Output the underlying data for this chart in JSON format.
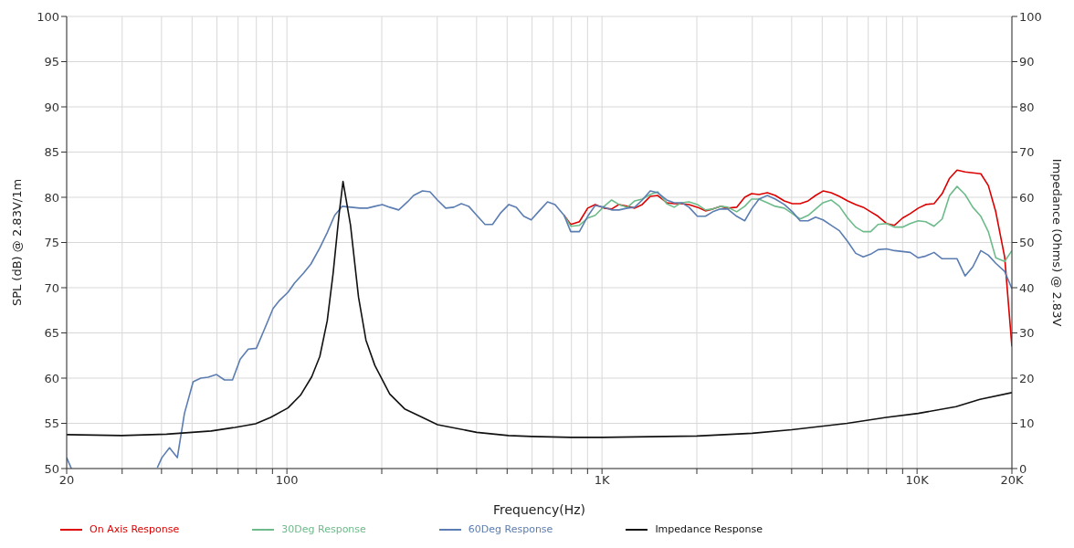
{
  "chart_data": {
    "type": "line",
    "xlabel": "Frequency(Hz)",
    "ylabel": "SPL (dB) @ 2.83V/1m",
    "y2label": "Impedance (Ohms) @ 2.83V",
    "log": "x",
    "grid": true,
    "legend": "bottom",
    "marker": "none",
    "line_style": "solid",
    "xlim": [
      20,
      20000
    ],
    "xticks": [
      20,
      {
        "value": 30,
        "label": null
      },
      {
        "value": 40,
        "label": null
      },
      {
        "value": 50,
        "label": null
      },
      {
        "value": 60,
        "label": null
      },
      {
        "value": 70,
        "label": null
      },
      {
        "value": 80,
        "label": null
      },
      {
        "value": 90,
        "label": null
      },
      100,
      {
        "value": 200,
        "label": null
      },
      {
        "value": 300,
        "label": null
      },
      {
        "value": 400,
        "label": null
      },
      {
        "value": 500,
        "label": null
      },
      {
        "value": 600,
        "label": null
      },
      {
        "value": 700,
        "label": null
      },
      {
        "value": 800,
        "label": null
      },
      {
        "value": 900,
        "label": null
      },
      {
        "value": 1000,
        "label": "1K"
      },
      {
        "value": 2000,
        "label": null
      },
      {
        "value": 3000,
        "label": null
      },
      {
        "value": 4000,
        "label": null
      },
      {
        "value": 5000,
        "label": null
      },
      {
        "value": 6000,
        "label": null
      },
      {
        "value": 7000,
        "label": null
      },
      {
        "value": 8000,
        "label": null
      },
      {
        "value": 9000,
        "label": null
      },
      {
        "value": 10000,
        "label": "10K"
      },
      {
        "value": 20000,
        "label": "20K"
      }
    ],
    "ylim": [
      50,
      100
    ],
    "yticks": [
      50,
      55,
      60,
      65,
      70,
      75,
      80,
      85,
      90,
      95,
      100
    ],
    "y2lim": [
      0,
      100
    ],
    "y2ticks": [
      0,
      10,
      20,
      30,
      40,
      50,
      60,
      70,
      80,
      90,
      100
    ],
    "series": [
      {
        "name": "On Axis Response",
        "color": "#dd0000",
        "x": [
          758,
          796,
          848,
          901,
          952,
          1016,
          1073,
          1132,
          1204,
          1271,
          1342,
          1423,
          1503,
          1605,
          1694,
          1789,
          1889,
          2008,
          2130,
          2248,
          2376,
          2506,
          2676,
          2838,
          2984,
          3150,
          3348,
          3550,
          3790,
          4020,
          4254,
          4512,
          4764,
          5032,
          5336,
          5670,
          6024,
          6388,
          6748,
          7124,
          7520,
          7998,
          8482,
          8996,
          9514,
          10088,
          10660,
          11324,
          12012,
          12682,
          13396,
          14206,
          15028,
          15936,
          16834,
          17774,
          18968,
          20000
        ],
        "values": [
          78.0,
          77.0,
          77.3,
          78.8,
          79.2,
          78.8,
          78.7,
          79.2,
          79.0,
          78.8,
          79.2,
          80.1,
          80.2,
          79.4,
          79.3,
          79.3,
          79.2,
          78.9,
          78.5,
          78.7,
          79.0,
          78.8,
          78.9,
          80.0,
          80.4,
          80.3,
          80.5,
          80.2,
          79.6,
          79.3,
          79.3,
          79.6,
          80.2,
          80.7,
          80.5,
          80.1,
          79.6,
          79.2,
          78.9,
          78.4,
          77.9,
          77.1,
          76.9,
          77.7,
          78.2,
          78.8,
          79.2,
          79.3,
          80.4,
          82.1,
          83.0,
          82.8,
          82.7,
          82.6,
          81.3,
          78.4,
          73.4,
          63.5
        ]
      },
      {
        "name": "30Deg Response",
        "color": "#6dbb8a",
        "x": [
          758,
          796,
          848,
          901,
          952,
          1016,
          1073,
          1132,
          1204,
          1271,
          1342,
          1423,
          1503,
          1605,
          1694,
          1789,
          1889,
          2008,
          2130,
          2248,
          2376,
          2506,
          2676,
          2838,
          2984,
          3150,
          3348,
          3550,
          3790,
          4020,
          4254,
          4512,
          4764,
          5032,
          5336,
          5670,
          6024,
          6388,
          6748,
          7124,
          7520,
          7998,
          8482,
          8996,
          9514,
          10088,
          10660,
          11324,
          12012,
          12682,
          13396,
          14206,
          15028,
          15936,
          16834,
          17774,
          18968,
          20000
        ],
        "values": [
          78.0,
          76.8,
          76.9,
          77.7,
          78.0,
          79.0,
          79.7,
          79.2,
          78.9,
          79.6,
          79.8,
          80.3,
          80.6,
          79.3,
          78.9,
          79.4,
          79.5,
          79.2,
          78.6,
          78.7,
          79.0,
          78.9,
          78.4,
          79.0,
          79.8,
          79.8,
          79.4,
          79.0,
          78.8,
          78.2,
          77.6,
          78.0,
          78.7,
          79.4,
          79.7,
          79.0,
          77.7,
          76.7,
          76.2,
          76.2,
          77.0,
          77.1,
          76.7,
          76.7,
          77.1,
          77.4,
          77.3,
          76.8,
          77.6,
          80.2,
          81.2,
          80.3,
          78.9,
          77.9,
          76.2,
          73.3,
          72.9,
          74.1
        ]
      },
      {
        "name": "60Deg Response",
        "color": "#5b7db1",
        "x": [
          20,
          20.7,
          30,
          38.8,
          40.1,
          42.4,
          44.9,
          47.3,
          50.4,
          53.3,
          56.2,
          59.8,
          63.4,
          67.2,
          71.1,
          75.4,
          80.0,
          85.1,
          90.4,
          94.8,
          100.8,
          105.7,
          112.8,
          119.1,
          127.2,
          134.3,
          141.8,
          149.7,
          159.8,
          170.5,
          180.1,
          190.2,
          200.8,
          212.0,
          226.4,
          241.6,
          252.4,
          269.4,
          284.6,
          300.4,
          319.2,
          338.6,
          357.6,
          377.6,
          400.4,
          425.4,
          449.4,
          477.6,
          506.4,
          534.6,
          564.6,
          596.2,
          632.2,
          671.8,
          709.6,
          758,
          796,
          848,
          901,
          952,
          1016,
          1073,
          1132,
          1204,
          1271,
          1342,
          1423,
          1503,
          1605,
          1694,
          1789,
          1889,
          2008,
          2130,
          2248,
          2376,
          2506,
          2676,
          2838,
          2984,
          3150,
          3348,
          3550,
          3790,
          4020,
          4254,
          4512,
          4764,
          5032,
          5336,
          5670,
          6024,
          6388,
          6748,
          7124,
          7520,
          7998,
          8482,
          8996,
          9514,
          10088,
          10660,
          11324,
          12012,
          12682,
          13396,
          14206,
          15028,
          15936,
          16834,
          17774,
          18968,
          20000
        ],
        "values": [
          51.2,
          50.0,
          null,
          50.1,
          51.2,
          52.3,
          51.2,
          56.1,
          59.6,
          60.0,
          60.1,
          60.4,
          59.8,
          59.8,
          62.1,
          63.2,
          63.3,
          65.5,
          67.7,
          68.6,
          69.5,
          70.5,
          71.6,
          72.6,
          74.4,
          76.1,
          78.0,
          79.0,
          78.9,
          78.8,
          78.8,
          79.0,
          79.2,
          78.9,
          78.6,
          79.5,
          80.2,
          80.7,
          80.6,
          79.7,
          78.8,
          78.9,
          79.3,
          79.0,
          78.0,
          77.0,
          77.0,
          78.3,
          79.2,
          78.9,
          77.9,
          77.5,
          78.5,
          79.5,
          79.2,
          78.0,
          76.2,
          76.2,
          77.9,
          79.1,
          78.9,
          78.6,
          78.6,
          78.8,
          78.9,
          79.7,
          80.7,
          80.5,
          79.7,
          79.4,
          79.4,
          78.9,
          77.9,
          77.9,
          78.4,
          78.7,
          78.7,
          77.9,
          77.4,
          78.7,
          79.8,
          80.2,
          79.8,
          79.2,
          78.4,
          77.4,
          77.4,
          77.8,
          77.5,
          76.9,
          76.3,
          75.1,
          73.8,
          73.4,
          73.7,
          74.2,
          74.3,
          74.1,
          74.0,
          73.9,
          73.3,
          73.5,
          73.9,
          73.2,
          73.2,
          73.2,
          71.3,
          72.3,
          74.1,
          73.6,
          72.7,
          71.8,
          69.9
        ]
      },
      {
        "name": "Impedance Response",
        "color": "#111111",
        "axis": "y2",
        "x": [
          20,
          29.9,
          41.5,
          57.5,
          68.4,
          79.5,
          88.8,
          100.8,
          110.4,
          119.9,
          127.2,
          134.3,
          140.2,
          146.5,
          150.7,
          159.2,
          168.8,
          178.2,
          190.2,
          212.0,
          236.4,
          263.6,
          300.8,
          400.2,
          505,
          598,
          798,
          1008,
          2005,
          2998,
          4002,
          6000,
          7984,
          10080,
          13290,
          15832,
          20000
        ],
        "values": [
          7.5,
          7.3,
          7.6,
          8.3,
          9.1,
          9.9,
          11.3,
          13.4,
          16.2,
          20.3,
          24.8,
          32.7,
          43.2,
          56.4,
          63.5,
          53.8,
          37.9,
          28.4,
          22.8,
          16.5,
          13.2,
          11.6,
          9.7,
          8.0,
          7.3,
          7.1,
          6.9,
          6.9,
          7.2,
          7.8,
          8.6,
          10.0,
          11.3,
          12.2,
          13.7,
          15.3,
          16.8
        ]
      }
    ]
  }
}
